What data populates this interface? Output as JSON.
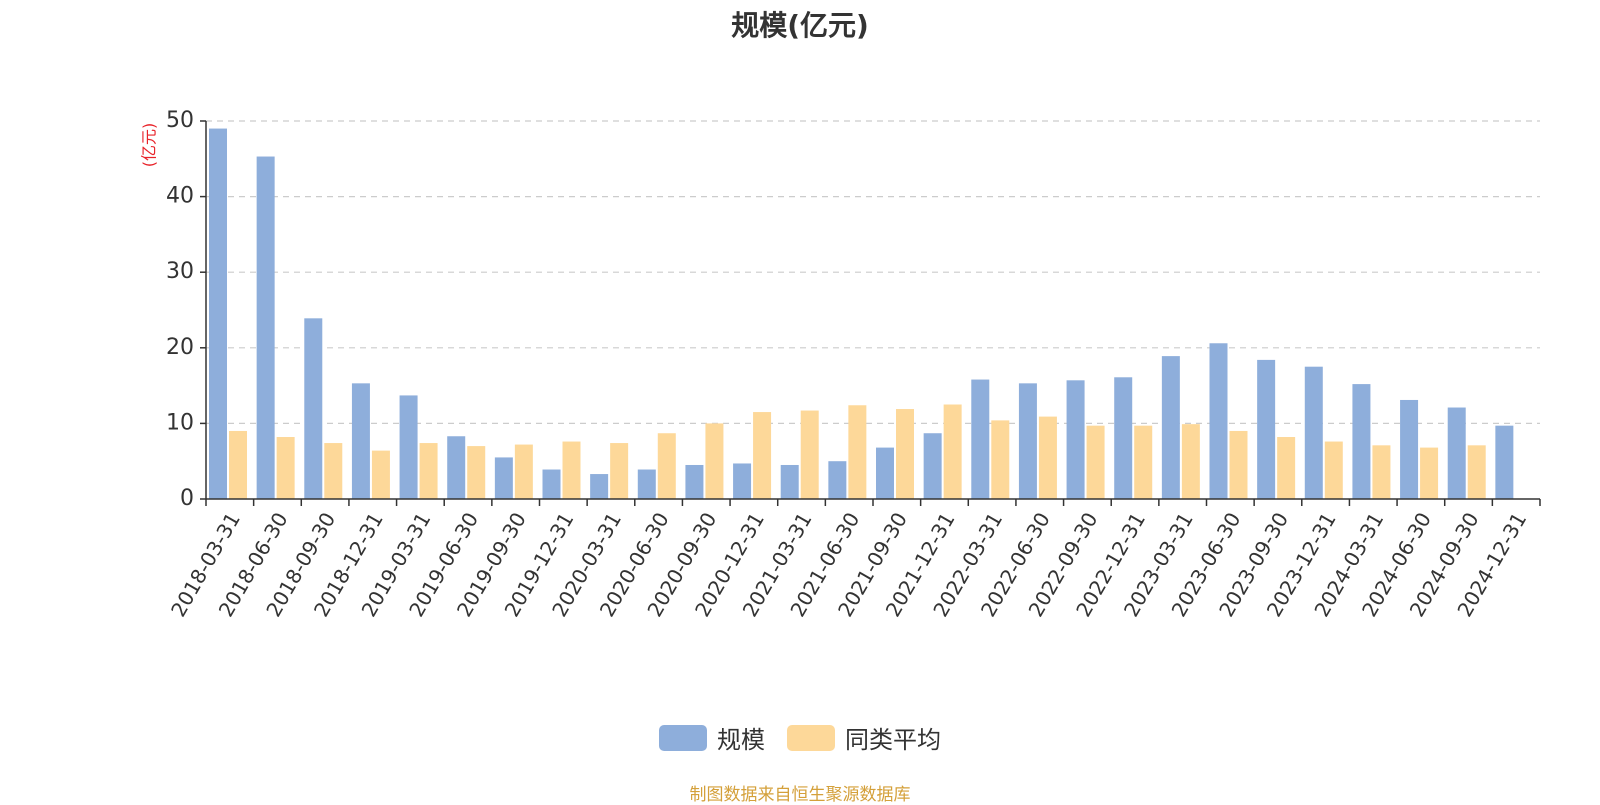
{
  "chart_data": {
    "type": "bar",
    "title": "规模(亿元)",
    "ylabel": "(亿元)",
    "ylim": [
      0,
      50
    ],
    "yticks": [
      "0",
      "10",
      "20",
      "30",
      "40",
      "50"
    ],
    "categories": [
      "2018-03-31",
      "2018-06-30",
      "2018-09-30",
      "2018-12-31",
      "2019-03-31",
      "2019-06-30",
      "2019-09-30",
      "2019-12-31",
      "2020-03-31",
      "2020-06-30",
      "2020-09-30",
      "2020-12-31",
      "2021-03-31",
      "2021-06-30",
      "2021-09-30",
      "2021-12-31",
      "2022-03-31",
      "2022-06-30",
      "2022-09-30",
      "2022-12-31",
      "2023-03-31",
      "2023-06-30",
      "2023-09-30",
      "2023-12-31",
      "2024-03-31",
      "2024-06-30",
      "2024-09-30",
      "2024-12-31"
    ],
    "series": [
      {
        "name": "规模",
        "color": "#8eaedb",
        "values": [
          49.0,
          45.3,
          23.9,
          15.3,
          13.7,
          8.3,
          5.5,
          3.9,
          3.3,
          3.9,
          4.5,
          4.7,
          4.5,
          5.0,
          6.8,
          8.7,
          15.8,
          15.3,
          15.7,
          16.1,
          18.9,
          20.6,
          18.4,
          17.5,
          15.2,
          13.1,
          12.1,
          9.7
        ]
      },
      {
        "name": "同类平均",
        "color": "#fdd899",
        "values": [
          9.0,
          8.2,
          7.4,
          6.4,
          7.4,
          7.0,
          7.2,
          7.6,
          7.4,
          8.7,
          10.0,
          11.5,
          11.7,
          12.4,
          11.9,
          12.5,
          10.4,
          10.9,
          9.7,
          9.7,
          9.9,
          9.0,
          8.2,
          7.6,
          7.1,
          6.8,
          7.1,
          null
        ]
      }
    ],
    "grid": "horizontal-dashed",
    "legend_position": "bottom-center"
  },
  "source_note": "制图数据来自恒生聚源数据库"
}
